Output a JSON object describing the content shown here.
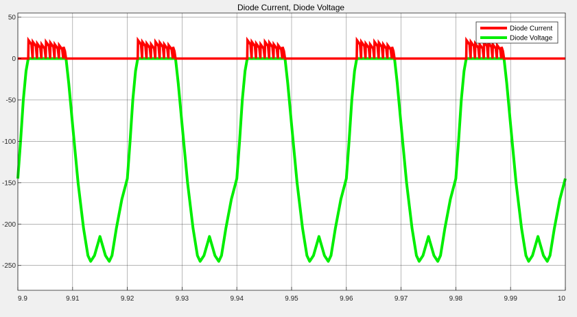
{
  "chart_data": {
    "type": "line",
    "title": "Diode Current, Diode Voltage",
    "xlabel": "",
    "ylabel": "",
    "xlim": [
      9.9,
      10.0
    ],
    "ylim": [
      -280,
      55
    ],
    "x_ticks": [
      9.9,
      9.91,
      9.92,
      9.93,
      9.94,
      9.95,
      9.96,
      9.97,
      9.98,
      9.99,
      10
    ],
    "x_tick_labels": [
      "9.9",
      "9.91",
      "9.92",
      "9.93",
      "9.94",
      "9.95",
      "9.96",
      "9.97",
      "9.98",
      "9.99",
      "10"
    ],
    "y_ticks": [
      50,
      0,
      -50,
      -100,
      -150,
      -200,
      -250
    ],
    "y_tick_labels": [
      "50",
      "0",
      "-50",
      "-100",
      "-150",
      "-200",
      "-250"
    ],
    "grid": true,
    "legend_position": "top-right",
    "background": "#ffffff",
    "series": [
      {
        "name": "Diode Current",
        "color": "#ff0000",
        "period": 0.02,
        "conduction_interval": [
          0.0019,
          0.0088
        ],
        "baseline": 0,
        "pulses": [
          {
            "t": 0.0019,
            "peak": 22
          },
          {
            "t": 0.0027,
            "peak": 20
          },
          {
            "t": 0.0035,
            "peak": 18
          },
          {
            "t": 0.0043,
            "peak": 17
          },
          {
            "t": 0.0051,
            "peak": 20
          },
          {
            "t": 0.0059,
            "peak": 19
          },
          {
            "t": 0.0067,
            "peak": 17
          },
          {
            "t": 0.0075,
            "peak": 16
          },
          {
            "t": 0.0083,
            "peak": 14
          }
        ]
      },
      {
        "name": "Diode Voltage",
        "color": "#00ee00",
        "period": 0.02,
        "points": [
          [
            0.0,
            -145
          ],
          [
            0.0005,
            -100
          ],
          [
            0.001,
            -50
          ],
          [
            0.0015,
            -15
          ],
          [
            0.0019,
            0
          ],
          [
            0.0088,
            0
          ],
          [
            0.0093,
            -30
          ],
          [
            0.01,
            -80
          ],
          [
            0.011,
            -150
          ],
          [
            0.012,
            -205
          ],
          [
            0.0128,
            -238
          ],
          [
            0.0133,
            -245
          ],
          [
            0.014,
            -238
          ],
          [
            0.015,
            -215
          ],
          [
            0.016,
            -238
          ],
          [
            0.0167,
            -245
          ],
          [
            0.0172,
            -238
          ],
          [
            0.018,
            -205
          ],
          [
            0.019,
            -170
          ],
          [
            0.02,
            -145
          ]
        ]
      }
    ]
  }
}
